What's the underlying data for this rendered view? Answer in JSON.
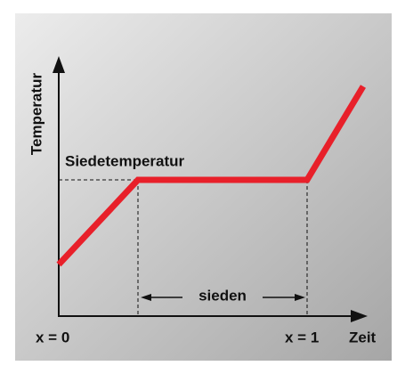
{
  "axis": {
    "y_label": "Temperatur",
    "x_label": "Zeit"
  },
  "labels": {
    "boiling_temperature": "Siedetemperatur",
    "boiling": "sieden",
    "x_start": "x = 0",
    "x_end": "x = 1"
  }
}
